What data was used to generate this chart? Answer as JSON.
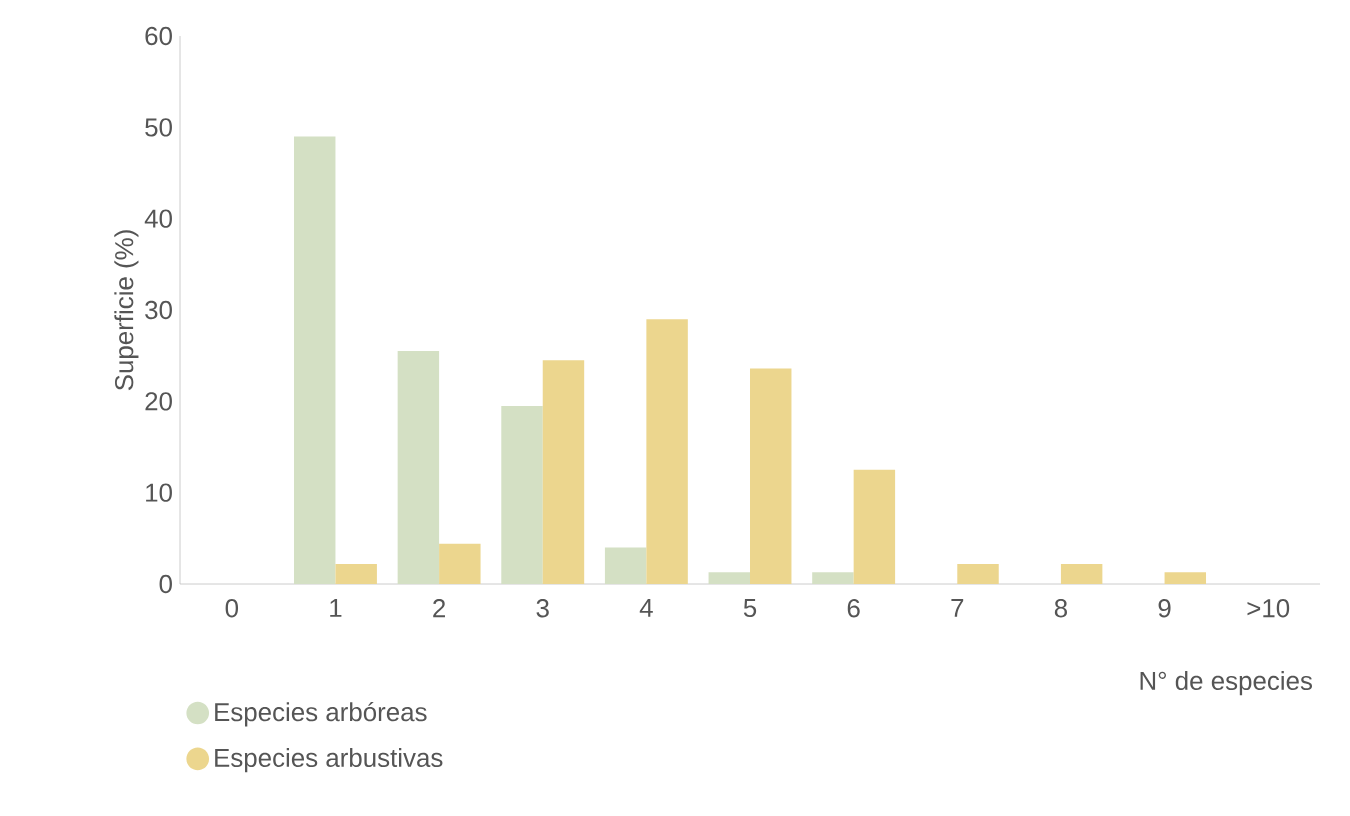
{
  "chart_data": {
    "type": "bar",
    "xlabel": "N° de especies",
    "ylabel": "Superficie (%)",
    "categories": [
      "0",
      "1",
      "2",
      "3",
      "4",
      "5",
      "6",
      "7",
      "8",
      "9",
      ">10"
    ],
    "series": [
      {
        "name": "Especies arbóreas",
        "color": "#d4e0c4",
        "values": [
          0,
          49,
          25.5,
          19.5,
          4,
          1.3,
          1.3,
          0,
          0,
          0,
          0
        ]
      },
      {
        "name": "Especies arbustivas",
        "color": "#ecd68e",
        "values": [
          0,
          2.2,
          4.4,
          24.5,
          29,
          23.6,
          12.5,
          2.2,
          2.2,
          1.3,
          0
        ]
      }
    ],
    "ylim": [
      0,
      60
    ],
    "yticks": [
      0,
      10,
      20,
      30,
      40,
      50,
      60
    ],
    "grid": false,
    "legend": "bottom left"
  }
}
